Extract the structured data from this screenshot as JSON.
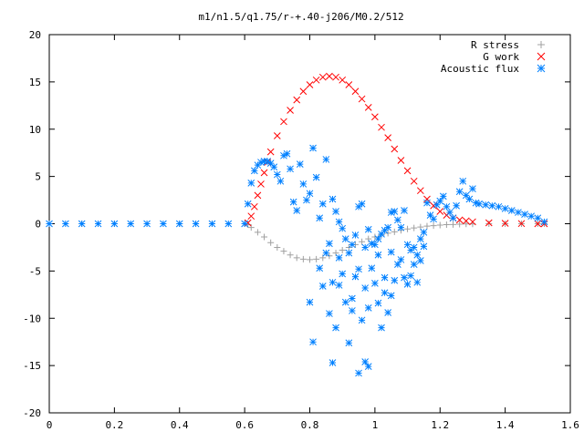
{
  "chart_data": {
    "type": "scatter",
    "title": "m1/n1.5/q1.75/r-+.40-j206/M0.2/512",
    "xlabel": "",
    "ylabel": "",
    "xlim": [
      0,
      1.6
    ],
    "ylim": [
      -20,
      20
    ],
    "x_ticks": [
      "0",
      "0.2",
      "0.4",
      "0.6",
      "0.8",
      "1",
      "1.2",
      "1.4",
      "1.6"
    ],
    "y_ticks": [
      "20",
      "15",
      "10",
      "5",
      "0",
      "-5",
      "-10",
      "-15",
      "-20"
    ],
    "grid": false,
    "legend_position": "top-right",
    "series": [
      {
        "name": "R stress",
        "marker": "+",
        "color": "#a0a0a0",
        "points": [
          [
            0.0,
            0.0
          ],
          [
            0.1,
            0.0
          ],
          [
            0.2,
            0.0
          ],
          [
            0.3,
            0.0
          ],
          [
            0.4,
            0.0
          ],
          [
            0.5,
            0.0
          ],
          [
            0.6,
            0.0
          ],
          [
            0.61,
            -0.1
          ],
          [
            0.62,
            -0.4
          ],
          [
            0.64,
            -0.9
          ],
          [
            0.66,
            -1.4
          ],
          [
            0.68,
            -2.0
          ],
          [
            0.7,
            -2.5
          ],
          [
            0.72,
            -2.9
          ],
          [
            0.74,
            -3.3
          ],
          [
            0.76,
            -3.6
          ],
          [
            0.78,
            -3.75
          ],
          [
            0.8,
            -3.8
          ],
          [
            0.82,
            -3.75
          ],
          [
            0.84,
            -3.6
          ],
          [
            0.86,
            -3.4
          ],
          [
            0.88,
            -3.1
          ],
          [
            0.9,
            -2.8
          ],
          [
            0.92,
            -2.5
          ],
          [
            0.94,
            -2.2
          ],
          [
            0.96,
            -1.9
          ],
          [
            0.98,
            -1.6
          ],
          [
            1.0,
            -1.4
          ],
          [
            1.02,
            -1.2
          ],
          [
            1.04,
            -1.0
          ],
          [
            1.06,
            -0.85
          ],
          [
            1.08,
            -0.7
          ],
          [
            1.1,
            -0.55
          ],
          [
            1.12,
            -0.45
          ],
          [
            1.14,
            -0.35
          ],
          [
            1.16,
            -0.25
          ],
          [
            1.18,
            -0.2
          ],
          [
            1.2,
            -0.15
          ],
          [
            1.22,
            -0.1
          ],
          [
            1.24,
            -0.08
          ],
          [
            1.26,
            -0.05
          ],
          [
            1.28,
            -0.03
          ],
          [
            1.3,
            -0.02
          ],
          [
            1.35,
            0.0
          ],
          [
            1.4,
            0.0
          ],
          [
            1.45,
            0.0
          ],
          [
            1.5,
            0.0
          ],
          [
            1.52,
            0.0
          ]
        ]
      },
      {
        "name": "G work",
        "marker": "x",
        "color": "#ff0000",
        "points": [
          [
            0.61,
            0.1
          ],
          [
            0.62,
            0.8
          ],
          [
            0.63,
            1.8
          ],
          [
            0.64,
            3.0
          ],
          [
            0.65,
            4.2
          ],
          [
            0.66,
            5.4
          ],
          [
            0.67,
            6.5
          ],
          [
            0.68,
            7.6
          ],
          [
            0.7,
            9.3
          ],
          [
            0.72,
            10.8
          ],
          [
            0.74,
            12.0
          ],
          [
            0.76,
            13.1
          ],
          [
            0.78,
            14.0
          ],
          [
            0.8,
            14.7
          ],
          [
            0.82,
            15.2
          ],
          [
            0.84,
            15.5
          ],
          [
            0.86,
            15.6
          ],
          [
            0.88,
            15.5
          ],
          [
            0.9,
            15.2
          ],
          [
            0.92,
            14.7
          ],
          [
            0.94,
            14.0
          ],
          [
            0.96,
            13.2
          ],
          [
            0.98,
            12.3
          ],
          [
            1.0,
            11.3
          ],
          [
            1.02,
            10.2
          ],
          [
            1.04,
            9.1
          ],
          [
            1.06,
            7.9
          ],
          [
            1.08,
            6.7
          ],
          [
            1.1,
            5.6
          ],
          [
            1.12,
            4.5
          ],
          [
            1.14,
            3.5
          ],
          [
            1.16,
            2.6
          ],
          [
            1.18,
            1.9
          ],
          [
            1.2,
            1.3
          ],
          [
            1.22,
            0.9
          ],
          [
            1.24,
            0.6
          ],
          [
            1.26,
            0.4
          ],
          [
            1.28,
            0.3
          ],
          [
            1.3,
            0.2
          ],
          [
            1.35,
            0.1
          ],
          [
            1.4,
            0.05
          ],
          [
            1.45,
            0.02
          ],
          [
            1.5,
            0.0
          ],
          [
            1.52,
            0.0
          ]
        ]
      },
      {
        "name": "Acoustic flux",
        "marker": "*",
        "color": "#0080ff",
        "points": [
          [
            0.0,
            0.0
          ],
          [
            0.05,
            0.0
          ],
          [
            0.1,
            0.0
          ],
          [
            0.15,
            0.0
          ],
          [
            0.2,
            0.0
          ],
          [
            0.25,
            0.0
          ],
          [
            0.3,
            0.0
          ],
          [
            0.35,
            0.0
          ],
          [
            0.4,
            0.0
          ],
          [
            0.45,
            0.0
          ],
          [
            0.5,
            0.0
          ],
          [
            0.55,
            0.0
          ],
          [
            0.6,
            0.0
          ],
          [
            0.61,
            2.1
          ],
          [
            0.62,
            4.3
          ],
          [
            0.63,
            5.6
          ],
          [
            0.64,
            6.2
          ],
          [
            0.65,
            6.5
          ],
          [
            0.66,
            6.6
          ],
          [
            0.67,
            6.6
          ],
          [
            0.68,
            6.4
          ],
          [
            0.69,
            6.0
          ],
          [
            0.7,
            5.2
          ],
          [
            0.71,
            4.5
          ],
          [
            0.72,
            7.2
          ],
          [
            0.73,
            7.4
          ],
          [
            0.74,
            5.8
          ],
          [
            0.75,
            2.3
          ],
          [
            0.76,
            1.4
          ],
          [
            0.77,
            6.3
          ],
          [
            0.78,
            4.2
          ],
          [
            0.79,
            2.5
          ],
          [
            0.8,
            3.2
          ],
          [
            0.81,
            8.0
          ],
          [
            0.82,
            4.9
          ],
          [
            0.83,
            0.6
          ],
          [
            0.84,
            2.1
          ],
          [
            0.85,
            6.8
          ],
          [
            0.86,
            -2.1
          ],
          [
            0.87,
            2.6
          ],
          [
            0.88,
            1.3
          ],
          [
            0.89,
            0.2
          ],
          [
            0.9,
            -0.5
          ],
          [
            0.91,
            -1.6
          ],
          [
            0.92,
            -3.1
          ],
          [
            0.93,
            -2.2
          ],
          [
            0.94,
            -1.2
          ],
          [
            0.95,
            1.8
          ],
          [
            0.96,
            2.1
          ],
          [
            0.97,
            -2.5
          ],
          [
            0.98,
            -0.6
          ],
          [
            0.99,
            -2.1
          ],
          [
            1.0,
            -2.2
          ],
          [
            1.01,
            -1.6
          ],
          [
            1.02,
            -1.1
          ],
          [
            1.03,
            -0.7
          ],
          [
            1.04,
            -0.4
          ],
          [
            1.05,
            1.2
          ],
          [
            1.06,
            1.3
          ],
          [
            1.07,
            0.4
          ],
          [
            1.08,
            -0.4
          ],
          [
            1.09,
            1.4
          ],
          [
            1.1,
            -2.2
          ],
          [
            1.11,
            -2.8
          ],
          [
            1.12,
            -2.5
          ],
          [
            1.13,
            -3.3
          ],
          [
            1.14,
            -1.6
          ],
          [
            1.15,
            -0.9
          ],
          [
            1.16,
            2.2
          ],
          [
            1.17,
            0.9
          ],
          [
            1.18,
            0.5
          ],
          [
            1.19,
            2.0
          ],
          [
            1.2,
            2.4
          ],
          [
            1.21,
            2.9
          ],
          [
            1.22,
            1.8
          ],
          [
            1.23,
            1.2
          ],
          [
            1.24,
            0.6
          ],
          [
            1.25,
            1.9
          ],
          [
            1.26,
            3.4
          ],
          [
            1.27,
            4.5
          ],
          [
            1.28,
            3.0
          ],
          [
            1.29,
            2.6
          ],
          [
            1.3,
            3.7
          ],
          [
            1.31,
            2.2
          ],
          [
            1.32,
            2.1
          ],
          [
            1.34,
            2.0
          ],
          [
            1.36,
            1.9
          ],
          [
            1.38,
            1.8
          ],
          [
            1.4,
            1.6
          ],
          [
            1.42,
            1.4
          ],
          [
            1.44,
            1.2
          ],
          [
            1.46,
            1.0
          ],
          [
            1.48,
            0.8
          ],
          [
            1.5,
            0.6
          ],
          [
            1.52,
            0.2
          ],
          [
            0.8,
            -8.3
          ],
          [
            0.81,
            -12.5
          ],
          [
            0.84,
            -6.6
          ],
          [
            0.86,
            -9.5
          ],
          [
            0.87,
            -14.7
          ],
          [
            0.88,
            -11.0
          ],
          [
            0.89,
            -6.5
          ],
          [
            0.9,
            -5.3
          ],
          [
            0.91,
            -8.3
          ],
          [
            0.92,
            -12.6
          ],
          [
            0.93,
            -7.9
          ],
          [
            0.94,
            -5.6
          ],
          [
            0.95,
            -15.8
          ],
          [
            0.96,
            -10.2
          ],
          [
            0.97,
            -14.6
          ],
          [
            0.98,
            -8.9
          ],
          [
            0.99,
            -4.7
          ],
          [
            1.0,
            -6.3
          ],
          [
            1.01,
            -8.4
          ],
          [
            1.02,
            -11.0
          ],
          [
            1.03,
            -5.7
          ],
          [
            1.04,
            -9.4
          ],
          [
            1.05,
            -7.6
          ],
          [
            1.06,
            -6.0
          ],
          [
            1.07,
            -4.3
          ],
          [
            1.08,
            -3.8
          ],
          [
            1.09,
            -5.7
          ],
          [
            1.1,
            -6.4
          ],
          [
            1.11,
            -5.5
          ],
          [
            1.12,
            -4.3
          ],
          [
            1.13,
            -6.2
          ],
          [
            1.14,
            -3.9
          ],
          [
            1.15,
            -2.4
          ],
          [
            0.83,
            -4.7
          ],
          [
            0.85,
            -3.1
          ],
          [
            0.87,
            -6.2
          ],
          [
            0.89,
            -3.6
          ],
          [
            0.93,
            -9.2
          ],
          [
            0.95,
            -4.8
          ],
          [
            0.97,
            -6.8
          ],
          [
            1.01,
            -3.3
          ],
          [
            1.03,
            -7.3
          ],
          [
            1.05,
            -3.0
          ],
          [
            0.98,
            -15.1
          ]
        ]
      }
    ]
  }
}
